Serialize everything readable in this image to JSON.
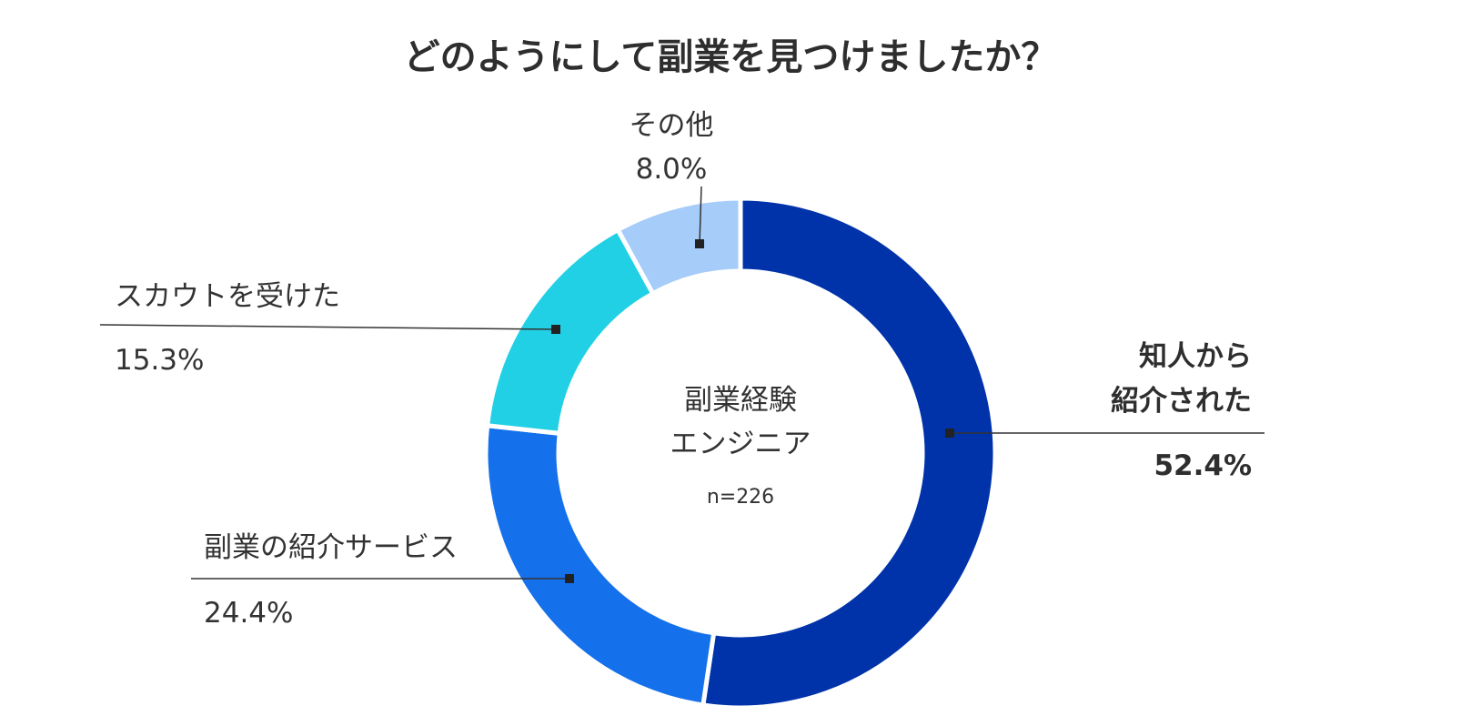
{
  "chart_data": {
    "type": "pie",
    "variant": "donut",
    "title": "どのようにして副業を見つけましたか？",
    "center_label": [
      "副業経験",
      "エンジニア"
    ],
    "center_note": "n=226",
    "slices": [
      {
        "label": [
          "知人から",
          "紹介された"
        ],
        "value": 52.4,
        "value_label": "52.4%",
        "color": "#0033aa",
        "emphasis": true
      },
      {
        "label": [
          "副業の紹介サービス"
        ],
        "value": 24.4,
        "value_label": "24.4%",
        "color": "#1570ec",
        "emphasis": false
      },
      {
        "label": [
          "スカウトを受けた"
        ],
        "value": 15.3,
        "value_label": "15.3%",
        "color": "#22d0e6",
        "emphasis": false
      },
      {
        "label": [
          "その他"
        ],
        "value": 8.0,
        "value_label": "8.0%",
        "color": "#a6ccfa",
        "emphasis": false
      }
    ]
  }
}
